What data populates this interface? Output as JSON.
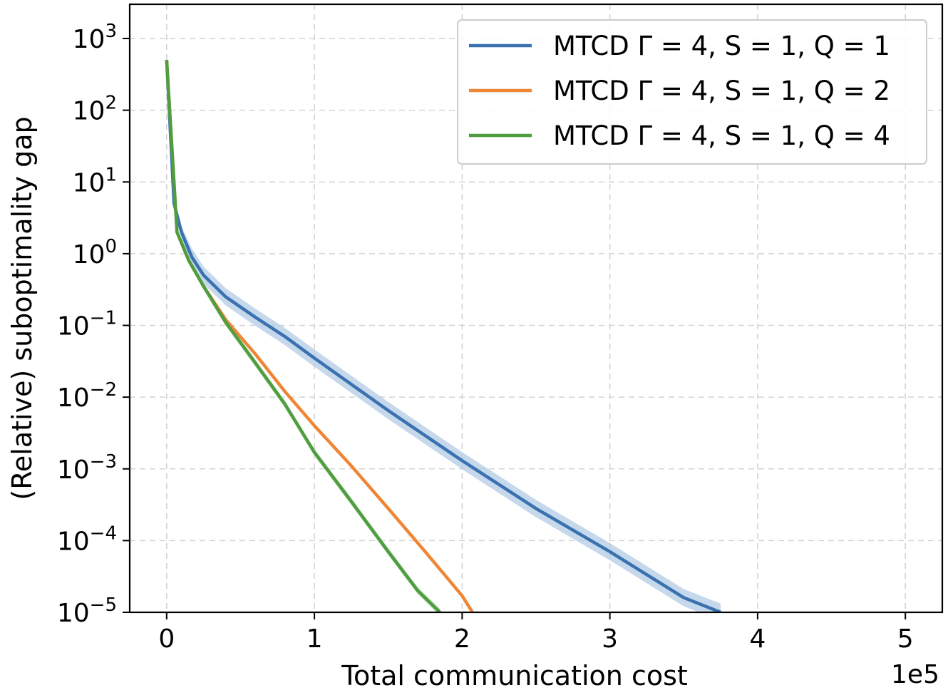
{
  "chart_data": {
    "type": "line",
    "title": "",
    "xlabel": "Total communication cost",
    "ylabel": "(Relative) suboptimality gap",
    "x_offset_label": "1e5",
    "x_scale": "linear",
    "y_scale": "log",
    "xlim": [
      -25000,
      525000
    ],
    "ylim": [
      1e-05,
      3000
    ],
    "x_ticks": [
      0,
      100000,
      200000,
      300000,
      400000,
      500000
    ],
    "x_tick_labels": [
      "0",
      "1",
      "2",
      "3",
      "4",
      "5"
    ],
    "y_ticks": [
      1000,
      100,
      10,
      1,
      0.1,
      0.01,
      0.001,
      0.0001,
      1e-05
    ],
    "y_tick_labels": [
      {
        "base": "10",
        "exp": "3"
      },
      {
        "base": "10",
        "exp": "2"
      },
      {
        "base": "10",
        "exp": "1"
      },
      {
        "base": "10",
        "exp": "0"
      },
      {
        "base": "10",
        "exp": "−1"
      },
      {
        "base": "10",
        "exp": "−2"
      },
      {
        "base": "10",
        "exp": "−3"
      },
      {
        "base": "10",
        "exp": "−4"
      },
      {
        "base": "10",
        "exp": "−5"
      }
    ],
    "grid": true,
    "legend_position": "top-right",
    "series": [
      {
        "name": "MTCD Γ = 4, S = 1, Q = 1",
        "color": "#3a72b0",
        "band_color": "#aec8e4",
        "x": [
          0,
          5000,
          10000,
          17000,
          25000,
          40000,
          60000,
          80000,
          100000,
          150000,
          200000,
          250000,
          300000,
          350000,
          375000
        ],
        "y": [
          500,
          5,
          2,
          0.9,
          0.5,
          0.25,
          0.13,
          0.07,
          0.035,
          0.0065,
          0.0013,
          0.00028,
          7e-05,
          1.6e-05,
          1e-05
        ],
        "band_width": 0.12
      },
      {
        "name": "MTCD Γ = 4, S = 1, Q = 2",
        "color": "#ef8636",
        "band_color": "#f8c9a0",
        "x": [
          0,
          7000,
          15000,
          25000,
          40000,
          60000,
          80000,
          100000,
          125000,
          150000,
          175000,
          200000,
          207000
        ],
        "y": [
          500,
          2,
          0.8,
          0.35,
          0.12,
          0.04,
          0.012,
          0.004,
          0.0011,
          0.00028,
          7e-05,
          1.7e-05,
          1e-05
        ],
        "band_width": 0.03
      },
      {
        "name": "MTCD Γ = 4, S = 1, Q = 4",
        "color": "#4e9d3f",
        "band_color": "#b5dca8",
        "x": [
          0,
          7000,
          15000,
          25000,
          40000,
          60000,
          80000,
          100000,
          125000,
          150000,
          170000,
          185000
        ],
        "y": [
          500,
          2,
          0.8,
          0.35,
          0.11,
          0.03,
          0.008,
          0.0017,
          0.00035,
          7e-05,
          2e-05,
          1e-05
        ],
        "band_width": 0.05
      }
    ]
  }
}
